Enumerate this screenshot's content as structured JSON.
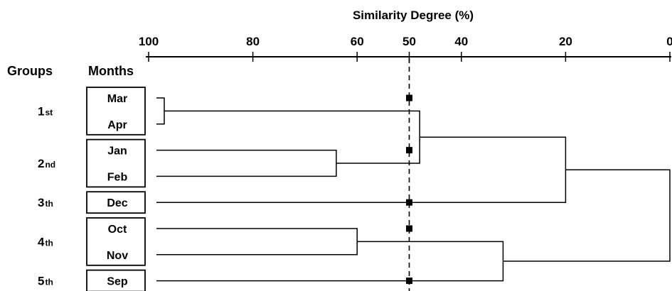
{
  "chart_data": {
    "type": "dendrogram",
    "title": "",
    "xlabel": "Similarity Degree (%)",
    "xlim": [
      100,
      0
    ],
    "xticks": [
      100,
      80,
      60,
      50,
      40,
      20,
      0
    ],
    "cut_line": 50,
    "column_headers": {
      "groups": "Groups",
      "months": "Months"
    },
    "leaves": [
      "Mar",
      "Apr",
      "Jan",
      "Feb",
      "Dec",
      "Oct",
      "Nov",
      "Sep"
    ],
    "merges": [
      {
        "id": "m1",
        "left": "Mar",
        "right": "Apr",
        "similarity": 97
      },
      {
        "id": "m2",
        "left": "Jan",
        "right": "Feb",
        "similarity": 64
      },
      {
        "id": "m3",
        "left": "Oct",
        "right": "Nov",
        "similarity": 60
      },
      {
        "id": "m4",
        "left": "m1",
        "right": "m2",
        "similarity": 48
      },
      {
        "id": "m5",
        "left": "m3",
        "right": "Sep",
        "similarity": 32
      },
      {
        "id": "m6",
        "left": "m4",
        "right": "Dec",
        "similarity": 20
      },
      {
        "id": "m7",
        "left": "m6",
        "right": "m5",
        "similarity": 0
      }
    ],
    "groups": [
      {
        "number": "1",
        "suffix": "st",
        "months": [
          "Mar",
          "Apr"
        ]
      },
      {
        "number": "2",
        "suffix": "nd",
        "months": [
          "Jan",
          "Feb"
        ]
      },
      {
        "number": "3",
        "suffix": "th",
        "months": [
          "Dec"
        ]
      },
      {
        "number": "4",
        "suffix": "th",
        "months": [
          "Oct",
          "Nov"
        ]
      },
      {
        "number": "5",
        "suffix": "th",
        "months": [
          "Sep"
        ]
      }
    ],
    "cut_markers_on": [
      "Mar",
      "Jan",
      "Dec",
      "Oct",
      "Sep"
    ]
  }
}
